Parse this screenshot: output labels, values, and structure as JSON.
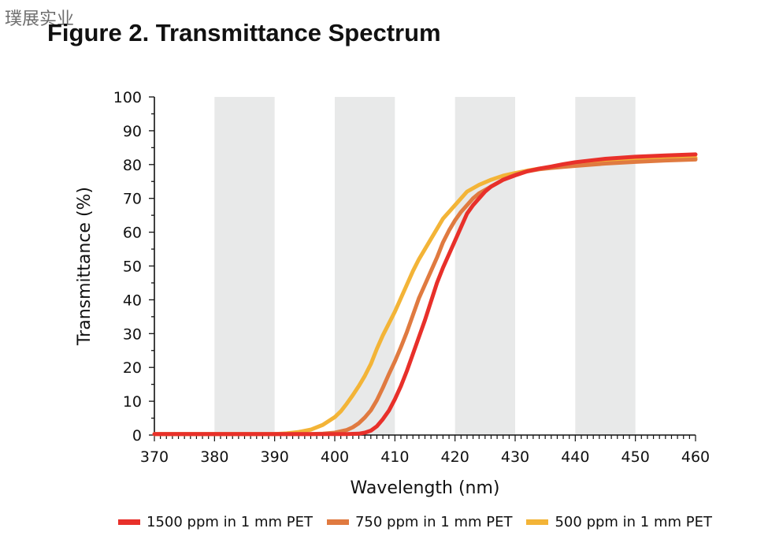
{
  "watermark": "璞展实业",
  "chart_data": {
    "type": "line",
    "title": "Figure 2. Transmittance Spectrum",
    "xlabel": "Wavelength (nm)",
    "ylabel": "Transmittance (%)",
    "xlim": [
      370,
      460
    ],
    "ylim": [
      0,
      100
    ],
    "xticks": [
      370,
      380,
      390,
      400,
      410,
      420,
      430,
      440,
      450,
      460
    ],
    "yticks": [
      0,
      10,
      20,
      30,
      40,
      50,
      60,
      70,
      80,
      90,
      100
    ],
    "shaded_bands": [
      [
        380,
        390
      ],
      [
        400,
        410
      ],
      [
        420,
        430
      ],
      [
        440,
        450
      ]
    ],
    "legend_position": "bottom",
    "grid": false,
    "series": [
      {
        "name": "1500 ppm in 1 mm PET",
        "color": "#e8302a",
        "x": [
          370,
          380,
          390,
          400,
          402,
          404,
          405,
          406,
          407,
          408,
          409,
          410,
          411,
          412,
          413,
          414,
          415,
          416,
          417,
          418,
          419,
          420,
          421,
          422,
          423,
          424,
          425,
          426,
          427,
          428,
          430,
          432,
          434,
          436,
          438,
          440,
          445,
          450,
          455,
          460
        ],
        "y": [
          0.3,
          0.3,
          0.3,
          0.3,
          0.3,
          0.4,
          0.7,
          1.3,
          2.6,
          4.7,
          7.2,
          10.6,
          14.5,
          19,
          24,
          29,
          34,
          39.5,
          45,
          49.5,
          53.5,
          57.5,
          61.5,
          65.5,
          68,
          70,
          72,
          73.5,
          74.5,
          75.5,
          76.8,
          78,
          78.8,
          79.4,
          80.1,
          80.7,
          81.7,
          82.3,
          82.7,
          83
        ]
      },
      {
        "name": "750 ppm in 1 mm PET",
        "color": "#e07a40",
        "x": [
          370,
          380,
          390,
          396,
          398,
          400,
          402,
          403,
          404,
          405,
          406,
          407,
          408,
          409,
          410,
          411,
          412,
          413,
          414,
          415,
          416,
          417,
          418,
          419,
          420,
          421,
          422,
          423,
          424,
          426,
          428,
          430,
          432,
          434,
          436,
          438,
          440,
          445,
          450,
          455,
          460
        ],
        "y": [
          0.3,
          0.3,
          0.3,
          0.3,
          0.4,
          0.7,
          1.5,
          2.3,
          3.5,
          5.2,
          7.3,
          10.3,
          14,
          18,
          21.8,
          26,
          30.5,
          35.5,
          40.5,
          44.5,
          48.5,
          52.5,
          57,
          60.5,
          63.5,
          66,
          68,
          70,
          71.5,
          73.5,
          75.5,
          77,
          78,
          78.6,
          79,
          79.3,
          79.6,
          80.3,
          80.8,
          81.2,
          81.5
        ]
      },
      {
        "name": "500 ppm in 1 mm PET",
        "color": "#f3b437",
        "x": [
          370,
          380,
          390,
          392,
          394,
          396,
          398,
          400,
          401,
          402,
          403,
          404,
          405,
          406,
          407,
          408,
          409,
          410,
          411,
          412,
          413,
          414,
          415,
          416,
          417,
          418,
          420,
          422,
          424,
          426,
          428,
          430,
          432,
          434,
          436,
          438,
          440,
          445,
          450,
          455,
          460
        ],
        "y": [
          0.3,
          0.3,
          0.3,
          0.5,
          0.9,
          1.6,
          3,
          5.3,
          7,
          9.3,
          11.8,
          14.5,
          17.5,
          21,
          25.5,
          29.5,
          33,
          36.5,
          40.5,
          44.5,
          48.5,
          52,
          55,
          58,
          61,
          64,
          68,
          72,
          74,
          75.5,
          76.7,
          77.5,
          78.2,
          78.8,
          79.2,
          79.5,
          79.8,
          80.6,
          81.2,
          81.6,
          82
        ]
      }
    ]
  }
}
